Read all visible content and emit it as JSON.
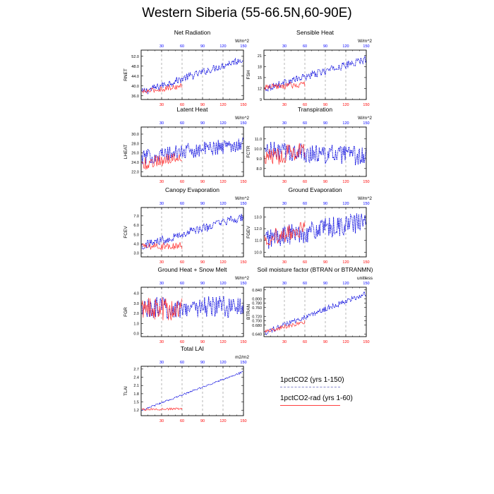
{
  "title": "Western Siberia (55-66.5N,60-90E)",
  "legend": [
    {
      "label": "1pctCO2 (yrs 1-150)",
      "color": "#8888cc",
      "style": "dashed"
    },
    {
      "label": "1pctCO2-rad (yrs 1-60)",
      "color": "#ff4040",
      "style": "solid"
    }
  ],
  "colors": {
    "series_a": "#0000dd",
    "series_b": "#ff3333",
    "top_ticks": "#0000ff",
    "bottom_ticks": "#ff0000"
  },
  "chart_data": [
    {
      "type": "line",
      "title": "Net Radiation",
      "ylabel": "RNET",
      "units": "W/m^2",
      "xlim": [
        0,
        150
      ],
      "ylim": [
        34.5,
        54.5
      ],
      "yticks": [
        "36.0",
        "40.0",
        "44.0",
        "48.0",
        "52.0"
      ],
      "ytick_values": [
        36,
        40,
        44,
        48,
        52
      ],
      "xticks": [
        "30",
        "60",
        "90",
        "120",
        "150"
      ],
      "xtick_values": [
        30,
        60,
        90,
        120,
        150
      ],
      "series": [
        {
          "name": "1pctCO2 (yrs 1-150)",
          "start": 37.5,
          "end": 51.0,
          "noise": 1.5,
          "years": 150
        },
        {
          "name": "1pctCO2-rad (yrs 1-60)",
          "start": 37.5,
          "end": 40.0,
          "noise": 1.1,
          "years": 60
        }
      ]
    },
    {
      "type": "line",
      "title": "Sensible Heat",
      "ylabel": "FSH",
      "units": "W/m^2",
      "xlim": [
        0,
        150
      ],
      "ylim": [
        9,
        22.5
      ],
      "yticks": [
        "9",
        "12",
        "15",
        "18",
        "21"
      ],
      "ytick_values": [
        9,
        12,
        15,
        18,
        21
      ],
      "xticks": [
        "30",
        "60",
        "90",
        "120",
        "150"
      ],
      "xtick_values": [
        30,
        60,
        90,
        120,
        150
      ],
      "series": [
        {
          "name": "1pctCO2 (yrs 1-150)",
          "start": 12.0,
          "end": 20.0,
          "noise": 1.0,
          "years": 150
        },
        {
          "name": "1pctCO2-rad (yrs 1-60)",
          "start": 12.2,
          "end": 13.2,
          "noise": 0.9,
          "years": 60
        }
      ]
    },
    {
      "type": "line",
      "title": "Latent Heat",
      "ylabel": "LHEAT",
      "units": "W/m^2",
      "xlim": [
        0,
        150
      ],
      "ylim": [
        21,
        31.5
      ],
      "yticks": [
        "22.0",
        "24.0",
        "26.0",
        "28.0",
        "30.0"
      ],
      "ytick_values": [
        22,
        24,
        26,
        28,
        30
      ],
      "xticks": [
        "30",
        "60",
        "90",
        "120",
        "150"
      ],
      "xtick_values": [
        30,
        60,
        90,
        120,
        150
      ],
      "series": [
        {
          "name": "1pctCO2 (yrs 1-150)",
          "start": 25.0,
          "end": 28.0,
          "noise": 1.6,
          "years": 150
        },
        {
          "name": "1pctCO2-rad (yrs 1-60)",
          "start": 23.5,
          "end": 25.5,
          "noise": 1.4,
          "years": 60
        }
      ]
    },
    {
      "type": "line",
      "title": "Transpiration",
      "ylabel": "FCTR",
      "units": "W/m^2",
      "xlim": [
        0,
        150
      ],
      "ylim": [
        7.2,
        12.2
      ],
      "yticks": [
        "8.0",
        "9.0",
        "10.0",
        "11.0"
      ],
      "ytick_values": [
        8,
        9,
        10,
        11
      ],
      "xticks": [
        "30",
        "60",
        "90",
        "120",
        "150"
      ],
      "xtick_values": [
        30,
        60,
        90,
        120,
        150
      ],
      "series": [
        {
          "name": "1pctCO2 (yrs 1-150)",
          "start": 9.8,
          "end": 9.2,
          "noise": 1.0,
          "years": 150
        },
        {
          "name": "1pctCO2-rad (yrs 1-60)",
          "start": 9.0,
          "end": 10.0,
          "noise": 1.0,
          "years": 60
        }
      ]
    },
    {
      "type": "line",
      "title": "Canopy Evaporation",
      "ylabel": "FCEV",
      "units": "W/m^2",
      "xlim": [
        0,
        150
      ],
      "ylim": [
        2.6,
        7.9
      ],
      "yticks": [
        "3.0",
        "4.0",
        "5.0",
        "6.0",
        "7.0"
      ],
      "ytick_values": [
        3,
        4,
        5,
        6,
        7
      ],
      "xticks": [
        "30",
        "60",
        "90",
        "120",
        "150"
      ],
      "xtick_values": [
        30,
        60,
        90,
        120,
        150
      ],
      "series": [
        {
          "name": "1pctCO2 (yrs 1-150)",
          "start": 3.8,
          "end": 6.9,
          "noise": 0.5,
          "years": 150
        },
        {
          "name": "1pctCO2-rad (yrs 1-60)",
          "start": 3.7,
          "end": 3.8,
          "noise": 0.4,
          "years": 60
        }
      ]
    },
    {
      "type": "line",
      "title": "Ground Evaporation",
      "ylabel": "FGEV",
      "units": "W/m^2",
      "xlim": [
        0,
        150
      ],
      "ylim": [
        9.6,
        13.8
      ],
      "yticks": [
        "10.0",
        "11.0",
        "12.0",
        "13.0"
      ],
      "ytick_values": [
        10,
        11,
        12,
        13
      ],
      "xticks": [
        "30",
        "60",
        "90",
        "120",
        "150"
      ],
      "xtick_values": [
        30,
        60,
        90,
        120,
        150
      ],
      "series": [
        {
          "name": "1pctCO2 (yrs 1-150)",
          "start": 11.1,
          "end": 12.6,
          "noise": 0.9,
          "years": 150
        },
        {
          "name": "1pctCO2-rad (yrs 1-60)",
          "start": 11.2,
          "end": 11.9,
          "noise": 0.7,
          "years": 60
        }
      ]
    },
    {
      "type": "line",
      "title": "Ground Heat + Snow Melt",
      "ylabel": "FGR",
      "units": "W/m^2",
      "xlim": [
        0,
        150
      ],
      "ylim": [
        -0.3,
        4.6
      ],
      "yticks": [
        "0.0",
        "1.0",
        "2.0",
        "3.0",
        "4.0"
      ],
      "ytick_values": [
        0,
        1,
        2,
        3,
        4
      ],
      "xticks": [
        "30",
        "60",
        "90",
        "120",
        "150"
      ],
      "xtick_values": [
        30,
        60,
        90,
        120,
        150
      ],
      "series": [
        {
          "name": "1pctCO2 (yrs 1-150)",
          "start": 2.5,
          "end": 2.7,
          "noise": 1.1,
          "years": 150
        },
        {
          "name": "1pctCO2-rad (yrs 1-60)",
          "start": 2.4,
          "end": 2.4,
          "noise": 1.2,
          "years": 60
        }
      ]
    },
    {
      "type": "line",
      "title": "Soil moisture factor (BTRAN or BTRANMN)",
      "ylabel": "BTRAN",
      "units": "unitless",
      "xlim": [
        0,
        150
      ],
      "ylim": [
        0.628,
        0.852
      ],
      "yticks": [
        "0.640",
        "0.680",
        "0.700",
        "0.720",
        "0.760",
        "0.780",
        "0.800",
        "0.840"
      ],
      "ytick_values": [
        0.64,
        0.68,
        0.7,
        0.72,
        0.76,
        0.78,
        0.8,
        0.84
      ],
      "xticks": [
        "30",
        "60",
        "90",
        "120",
        "150"
      ],
      "xtick_values": [
        30,
        60,
        90,
        120,
        150
      ],
      "series": [
        {
          "name": "1pctCO2 (yrs 1-150)",
          "start": 0.645,
          "end": 0.825,
          "noise": 0.012,
          "years": 150
        },
        {
          "name": "1pctCO2-rad (yrs 1-60)",
          "start": 0.65,
          "end": 0.695,
          "noise": 0.01,
          "years": 60
        }
      ]
    },
    {
      "type": "line",
      "title": "Total LAI",
      "ylabel": "TLAI",
      "units": "m2/m2",
      "xlim": [
        0,
        150
      ],
      "ylim": [
        1.0,
        2.8
      ],
      "yticks": [
        "1.2",
        "1.5",
        "1.8",
        "2.1",
        "2.4",
        "2.7"
      ],
      "ytick_values": [
        1.2,
        1.5,
        1.8,
        2.1,
        2.4,
        2.7
      ],
      "xticks": [
        "30",
        "60",
        "90",
        "120",
        "150"
      ],
      "xtick_values": [
        30,
        60,
        90,
        120,
        150
      ],
      "series": [
        {
          "name": "1pctCO2 (yrs 1-150)",
          "start": 1.2,
          "end": 2.6,
          "noise": 0.03,
          "years": 150
        },
        {
          "name": "1pctCO2-rad (yrs 1-60)",
          "start": 1.22,
          "end": 1.25,
          "noise": 0.04,
          "years": 60
        }
      ]
    }
  ]
}
